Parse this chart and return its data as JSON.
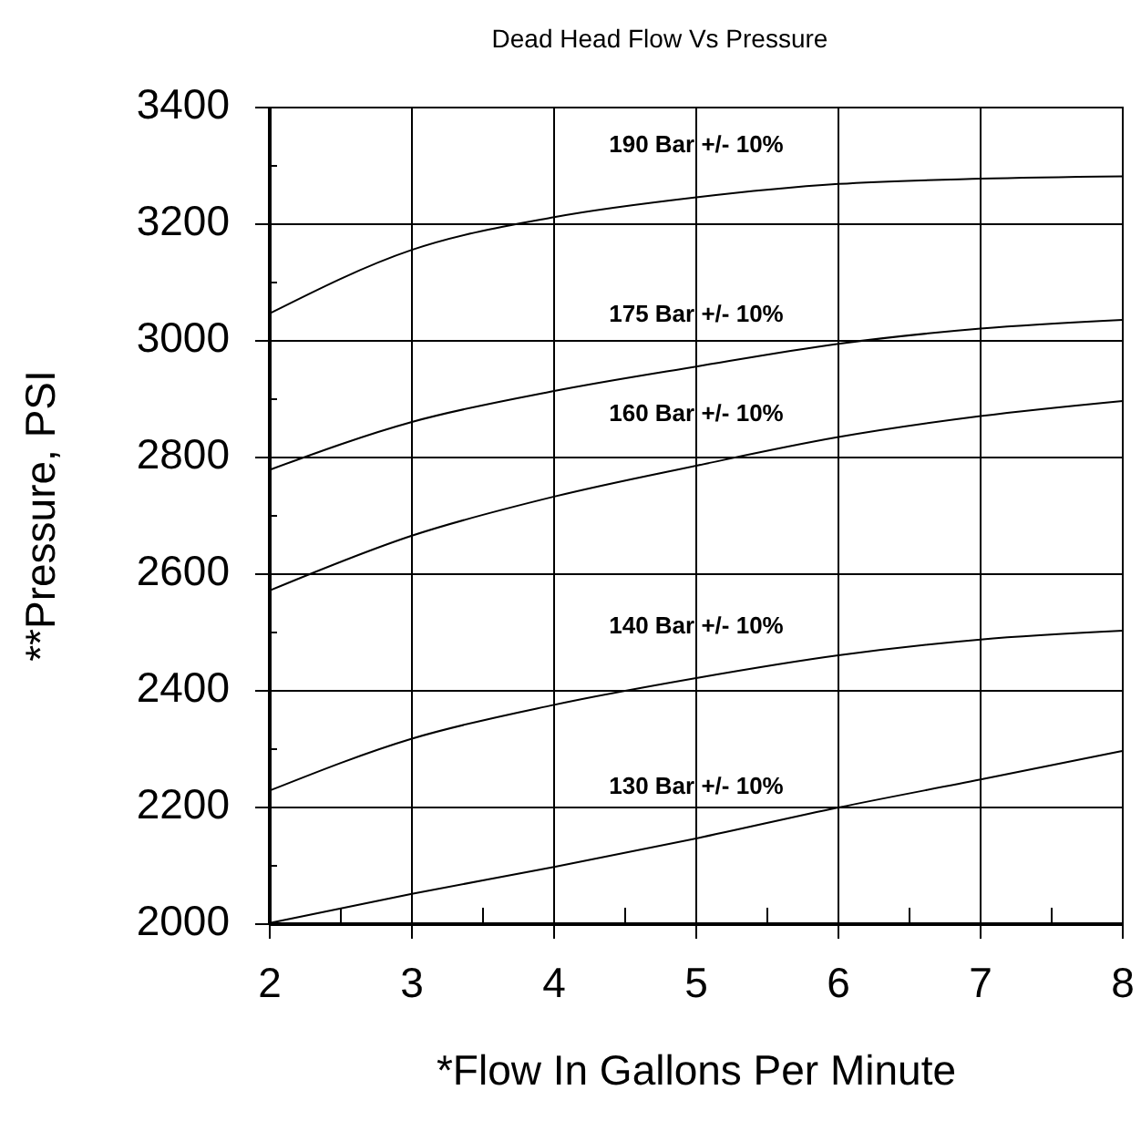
{
  "chart_data": {
    "type": "line",
    "title": "Dead Head Flow Vs Pressure",
    "xlabel": "*Flow In Gallons Per Minute",
    "ylabel": "**Pressure, PSI",
    "x": [
      2,
      3,
      4,
      5,
      6,
      7,
      8
    ],
    "series": [
      {
        "name": "190 Bar +/- 10%",
        "color": "#000000",
        "values": [
          3047,
          3156,
          3212,
          3246,
          3269,
          3278,
          3282
        ]
      },
      {
        "name": "175 Bar +/- 10%",
        "color": "#000000",
        "values": [
          2779,
          2861,
          2914,
          2956,
          2995,
          3021,
          3036
        ]
      },
      {
        "name": "160 Bar +/- 10%",
        "color": "#000000",
        "values": [
          2572,
          2666,
          2733,
          2786,
          2835,
          2871,
          2897
        ]
      },
      {
        "name": "140 Bar +/- 10%",
        "color": "#000000",
        "values": [
          2229,
          2318,
          2376,
          2422,
          2461,
          2488,
          2503
        ]
      },
      {
        "name": "130 Bar +/- 10%",
        "color": "#000000",
        "values": [
          2002,
          2052,
          2098,
          2147,
          2200,
          2248,
          2297
        ]
      }
    ],
    "xlim": [
      2,
      8
    ],
    "ylim": [
      2000,
      3400
    ],
    "xticks": [
      2,
      {
        "value": 2.5,
        "label": null
      },
      3,
      {
        "value": 3.5,
        "label": null
      },
      4,
      {
        "value": 4.5,
        "label": null
      },
      5,
      {
        "value": 5.5,
        "label": null
      },
      6,
      {
        "value": 6.5,
        "label": null
      },
      7,
      {
        "value": 7.5,
        "label": null
      },
      8
    ],
    "yticks": [
      2000,
      {
        "value": 2100,
        "label": null
      },
      2200,
      {
        "value": 2300,
        "label": null
      },
      2400,
      {
        "value": 2500,
        "label": null
      },
      2600,
      {
        "value": 2700,
        "label": null
      },
      2800,
      {
        "value": 2900,
        "label": null
      },
      3000,
      {
        "value": 3100,
        "label": null
      },
      3200,
      {
        "value": 3300,
        "label": null
      },
      3400
    ],
    "grid": true,
    "legend": false,
    "marker": "none",
    "line_style": "solid"
  }
}
